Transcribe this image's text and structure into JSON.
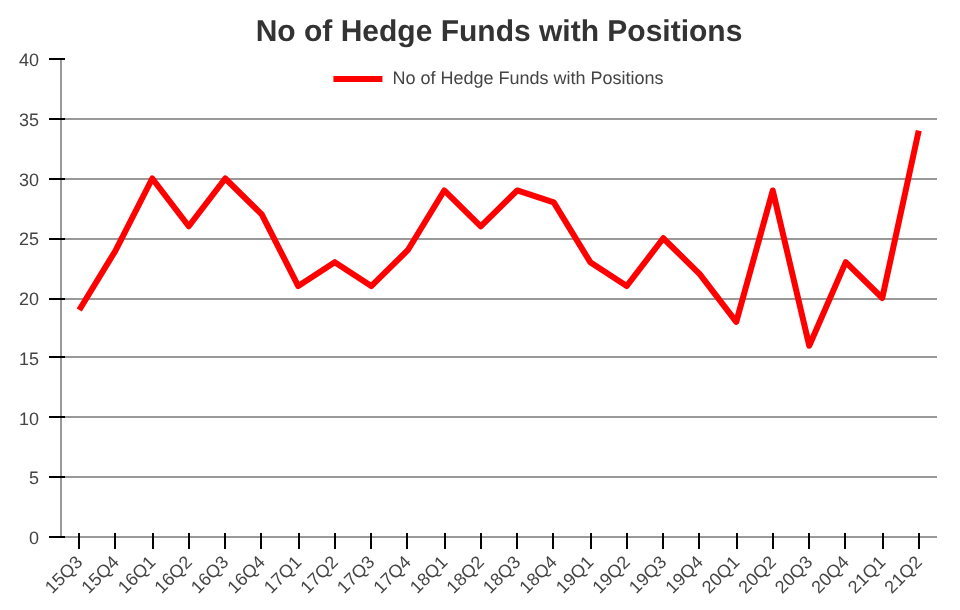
{
  "chart_data": {
    "type": "line",
    "title": "No of Hedge Funds with Positions",
    "categories": [
      "15Q3",
      "15Q4",
      "16Q1",
      "16Q2",
      "16Q3",
      "16Q4",
      "17Q1",
      "17Q2",
      "17Q3",
      "17Q4",
      "18Q1",
      "18Q2",
      "18Q3",
      "18Q4",
      "19Q1",
      "19Q2",
      "19Q3",
      "19Q4",
      "20Q1",
      "20Q2",
      "20Q3",
      "20Q4",
      "21Q1",
      "21Q2"
    ],
    "series": [
      {
        "name": "No of Hedge Funds with Positions",
        "color": "#ff0000",
        "values": [
          19,
          24,
          30,
          26,
          30,
          27,
          21,
          23,
          21,
          24,
          29,
          26,
          29,
          28,
          23,
          21,
          25,
          22,
          18,
          29,
          16,
          23,
          20,
          34
        ]
      }
    ],
    "ylim": [
      0,
      40
    ],
    "yticks": [
      0,
      5,
      10,
      15,
      20,
      25,
      30,
      35,
      40
    ],
    "grid": "y",
    "legend": "top",
    "marker": "none",
    "line_style": "solid"
  }
}
